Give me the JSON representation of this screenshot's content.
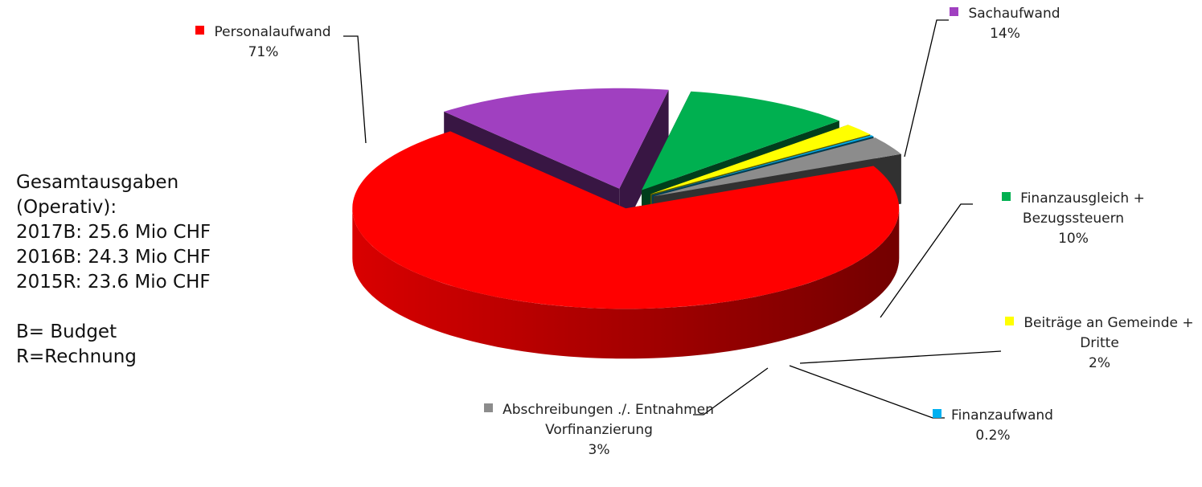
{
  "chart_data": {
    "type": "pie3d",
    "categories": [
      "Personalaufwand",
      "Sachaufwand",
      "Finanzausgleich + Bezugssteuern",
      "Beiträge an Gemeinde + Dritte",
      "Finanzaufwand",
      "Abschreibungen ./. Entnahmen Vorfinanzierung"
    ],
    "values": [
      71,
      14,
      10,
      2,
      0.2,
      3
    ],
    "value_labels": [
      "71%",
      "14%",
      "10%",
      "2%",
      "0.2%",
      "3%"
    ],
    "colors": [
      "#ff0000",
      "#a040c0",
      "#00b050",
      "#ffff00",
      "#00b0f0",
      "#8c8c8c"
    ],
    "annotation": [
      "Gesamtausgaben",
      "(Operativ):",
      "2017B: 25.6 Mio CHF",
      "2016B: 24.3 Mio CHF",
      "2015R: 23.6 Mio CHF",
      "",
      "B= Budget",
      "R=Rechnung"
    ]
  }
}
